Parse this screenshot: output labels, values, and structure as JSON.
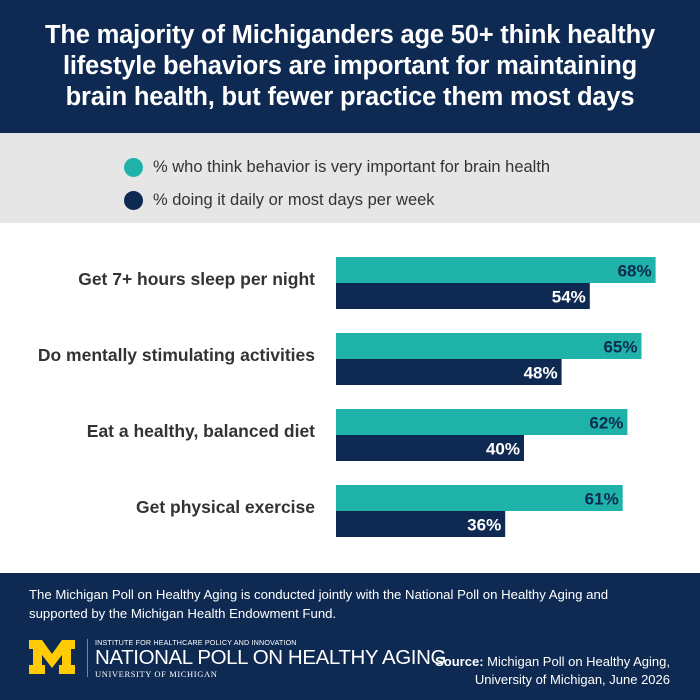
{
  "header": {
    "title": "The majority of Michiganders age 50+ think healthy lifestyle behaviors are important for maintaining brain health, but fewer practice them most days"
  },
  "colors": {
    "navy": "#0e2a52",
    "teal": "#1fb2a8",
    "legend_bg": "#e6e6e6"
  },
  "chart_data": {
    "type": "bar",
    "orientation": "horizontal",
    "categories": [
      "Get 7+ hours sleep per night",
      "Do mentally stimulating activities",
      "Eat a healthy, balanced diet",
      "Get physical exercise"
    ],
    "series": [
      {
        "name": "% who think behavior is very important for brain health",
        "color": "#1fb2a8",
        "values": [
          68,
          65,
          62,
          61
        ],
        "labels": [
          "68%",
          "65%",
          "62%",
          "61%"
        ]
      },
      {
        "name": "% doing it daily or most days per week",
        "color": "#0e2a52",
        "values": [
          54,
          48,
          40,
          36
        ],
        "labels": [
          "54%",
          "48%",
          "40%",
          "36%"
        ]
      }
    ],
    "legend_position": "top",
    "grid": false
  },
  "footer": {
    "note": "The Michigan Poll on Healthy Aging is conducted jointly with the National Poll on Healthy Aging and supported by the Michigan Health Endowment Fund.",
    "logo_institute": "INSTITUTE FOR HEALTHCARE POLICY AND INNOVATION",
    "logo_poll": "NATIONAL POLL ON HEALTHY AGING",
    "logo_university": "UNIVERSITY OF MICHIGAN",
    "source_label": "Source:",
    "source_line1": "Michigan Poll on Healthy Aging,",
    "source_line2": "University of Michigan, June 2026"
  }
}
